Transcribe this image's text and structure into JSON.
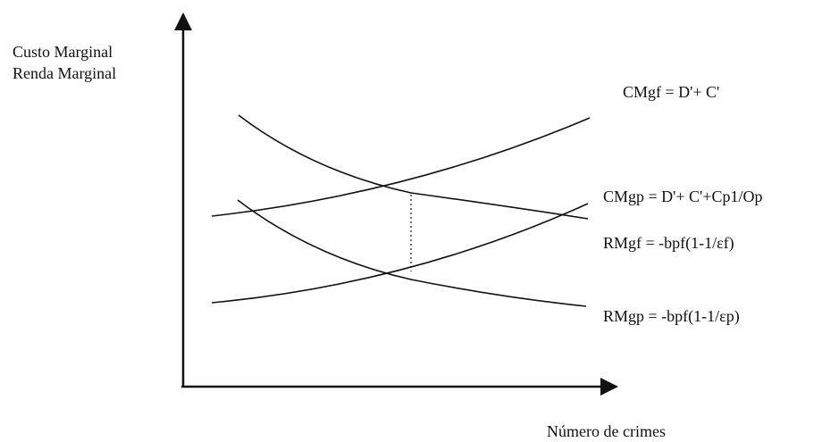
{
  "y_axis_label_line1": "Custo Marginal",
  "y_axis_label_line2": "Renda Marginal",
  "x_axis_label": "Número de crimes",
  "curves": {
    "cmgf": "CMgf = D'+ C'",
    "cmgp": "CMgp = D'+ C'+Cp1/Op",
    "rmgf": "RMgf = -bpf(1-1/εf)",
    "rmgp": "RMgp = -bpf(1-1/εp)"
  }
}
